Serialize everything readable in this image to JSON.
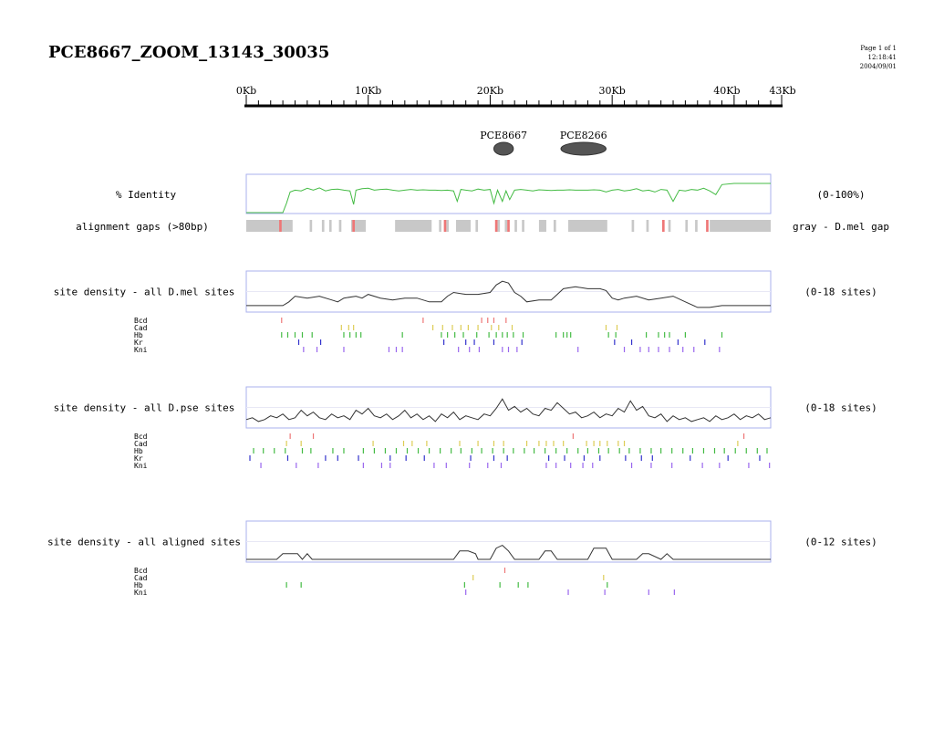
{
  "header": {
    "title": "PCE8667_ZOOM_13143_30035",
    "page": "Page 1 of 1",
    "time": "12:18:41",
    "date": "2004/09/01"
  },
  "chart_data": {
    "type": "genome_track_plot",
    "ruler": {
      "unit": "Kb",
      "range": [
        0,
        43
      ],
      "major_ticks": [
        0,
        10,
        20,
        30,
        40,
        43
      ],
      "tick_labels": [
        "0Kb",
        "10Kb",
        "20Kb",
        "30Kb",
        "40Kb",
        "43Kb"
      ]
    },
    "features": [
      {
        "name": "PCE8667",
        "start": 20.3,
        "end": 21.9
      },
      {
        "name": "PCE8266",
        "start": 25.8,
        "end": 29.5
      }
    ],
    "identity_track": {
      "label": "% Identity",
      "scale": "(0-100%)",
      "color": "#44bb44",
      "x": [
        0,
        1,
        2,
        3,
        3.3,
        3.6,
        4,
        4.5,
        5,
        5.5,
        6,
        6.5,
        7,
        7.5,
        8,
        8.5,
        8.8,
        9,
        9.5,
        10,
        10.5,
        11,
        11.5,
        12,
        12.5,
        13,
        13.5,
        14,
        14.5,
        15,
        15.5,
        16,
        16.5,
        17,
        17.3,
        17.6,
        18,
        18.5,
        19,
        19.5,
        20,
        20.3,
        20.6,
        21,
        21.3,
        21.6,
        22,
        22.5,
        23,
        23.5,
        24,
        24.5,
        25,
        25.5,
        26,
        26.5,
        27,
        27.5,
        28,
        28.5,
        29,
        29.5,
        30,
        30.5,
        31,
        31.5,
        32,
        32.5,
        33,
        33.5,
        34,
        34.5,
        35,
        35.5,
        36,
        36.5,
        37,
        37.5,
        38,
        38.5,
        39,
        40,
        41,
        42,
        43
      ],
      "values": [
        0,
        0,
        0,
        0,
        25,
        55,
        60,
        58,
        65,
        60,
        66,
        58,
        62,
        63,
        60,
        58,
        22,
        60,
        64,
        65,
        60,
        62,
        63,
        60,
        58,
        60,
        62,
        60,
        61,
        60,
        60,
        59,
        60,
        58,
        30,
        62,
        60,
        58,
        63,
        60,
        62,
        25,
        60,
        30,
        58,
        35,
        60,
        62,
        60,
        58,
        61,
        60,
        59,
        60,
        60,
        61,
        60,
        60,
        60,
        61,
        60,
        55,
        60,
        62,
        58,
        60,
        64,
        58,
        60,
        55,
        62,
        60,
        30,
        60,
        58,
        62,
        60,
        65,
        58,
        48,
        75,
        78,
        78,
        78,
        78
      ]
    },
    "gaps_track": {
      "label": "alignment gaps (>80bp)",
      "legend": "gray - D.mel gap",
      "gray_color": "#c8c8c8",
      "red_color": "#ee7777",
      "gray": [
        [
          0,
          3.8
        ],
        [
          5.2,
          5.4
        ],
        [
          6.2,
          6.4
        ],
        [
          6.8,
          7
        ],
        [
          7.6,
          7.8
        ],
        [
          8.6,
          9.8
        ],
        [
          12.2,
          15.2
        ],
        [
          15.8,
          16
        ],
        [
          16.4,
          16.6
        ],
        [
          17.2,
          18.4
        ],
        [
          18.8,
          19
        ],
        [
          20.6,
          20.8
        ],
        [
          21.2,
          21.4
        ],
        [
          22,
          22.2
        ],
        [
          22.6,
          22.8
        ],
        [
          24,
          24.6
        ],
        [
          25.2,
          25.4
        ],
        [
          26.4,
          29.6
        ],
        [
          31.6,
          31.8
        ],
        [
          32.8,
          33
        ],
        [
          34.6,
          34.8
        ],
        [
          36,
          36.2
        ],
        [
          36.8,
          37
        ],
        [
          38,
          43
        ]
      ],
      "red": [
        [
          2.7,
          2.9
        ],
        [
          8.7,
          8.9
        ],
        [
          16.2,
          16.4
        ],
        [
          20.4,
          20.6
        ],
        [
          21.4,
          21.6
        ],
        [
          34.1,
          34.3
        ],
        [
          37.7,
          37.9
        ]
      ]
    },
    "panels": [
      {
        "label": "site density - all D.mel sites",
        "scale": "(0-18 sites)",
        "ymax": 18,
        "x": [
          0,
          1,
          2,
          3,
          3.5,
          4,
          5,
          6,
          7,
          7.5,
          8,
          9,
          9.5,
          10,
          11,
          12,
          13,
          14,
          15,
          16,
          16.5,
          17,
          18,
          19,
          20,
          20.5,
          21,
          21.5,
          22,
          22.5,
          23,
          24,
          25,
          25.5,
          26,
          27,
          28,
          29,
          29.5,
          30,
          30.5,
          31,
          32,
          33,
          34,
          35,
          36,
          37,
          38,
          39,
          40,
          41,
          42,
          43
        ],
        "values": [
          2,
          2,
          2,
          2,
          4,
          7,
          6,
          7,
          5,
          4,
          6,
          7,
          6,
          8,
          6,
          5,
          6,
          6,
          4,
          4,
          7,
          9,
          8,
          8,
          9,
          13,
          15,
          14,
          9,
          7,
          4,
          5,
          5,
          8,
          11,
          12,
          11,
          11,
          10,
          6,
          5,
          6,
          7,
          5,
          6,
          7,
          4,
          1,
          1,
          2,
          2,
          2,
          2,
          2
        ],
        "tracks": [
          {
            "name": "Bcd",
            "color": "#ee7777",
            "sites": [
              2.9,
              14.5,
              19.3,
              19.8,
              20.3,
              21.3
            ]
          },
          {
            "name": "Cad",
            "color": "#ddcc55",
            "sites": [
              7.8,
              8.4,
              8.8,
              15.3,
              16.1,
              16.9,
              17.6,
              18.2,
              19.0,
              20.1,
              20.7,
              21.8,
              29.5,
              30.4
            ]
          },
          {
            "name": "Hb",
            "color": "#44bb44",
            "sites": [
              2.9,
              3.4,
              4.0,
              4.6,
              5.4,
              8.0,
              8.5,
              9.0,
              9.4,
              12.8,
              16.0,
              16.5,
              17.1,
              17.8,
              18.9,
              19.9,
              20.5,
              21.0,
              21.4,
              21.9,
              22.7,
              25.4,
              26.0,
              26.3,
              26.6,
              29.7,
              30.3,
              32.8,
              33.8,
              34.3,
              34.7,
              36.0,
              39.0
            ]
          },
          {
            "name": "Kr",
            "color": "#3333cc",
            "sites": [
              4.3,
              6.1,
              16.2,
              18.0,
              18.7,
              20.3,
              22.6,
              30.2,
              31.6,
              35.4,
              37.6
            ]
          },
          {
            "name": "Kni",
            "color": "#9966ee",
            "sites": [
              4.7,
              5.8,
              8.0,
              11.7,
              12.3,
              12.8,
              17.4,
              18.3,
              19.1,
              21.0,
              21.5,
              22.2,
              27.2,
              31.0,
              32.3,
              33.0,
              33.8,
              34.7,
              35.8,
              36.7,
              38.8
            ]
          }
        ]
      },
      {
        "label": "site density - all D.pse sites",
        "scale": "(0-18 sites)",
        "ymax": 18,
        "x": [
          0,
          0.5,
          1,
          1.5,
          2,
          2.5,
          3,
          3.5,
          4,
          4.5,
          5,
          5.5,
          6,
          6.5,
          7,
          7.5,
          8,
          8.5,
          9,
          9.5,
          10,
          10.5,
          11,
          11.5,
          12,
          12.5,
          13,
          13.5,
          14,
          14.5,
          15,
          15.5,
          16,
          16.5,
          17,
          17.5,
          18,
          18.5,
          19,
          19.5,
          20,
          20.5,
          21,
          21.5,
          22,
          22.5,
          23,
          23.5,
          24,
          24.5,
          25,
          25.5,
          26,
          26.5,
          27,
          27.5,
          28,
          28.5,
          29,
          29.5,
          30,
          30.5,
          31,
          31.5,
          32,
          32.5,
          33,
          33.5,
          34,
          34.5,
          35,
          35.5,
          36,
          36.5,
          37,
          37.5,
          38,
          38.5,
          39,
          39.5,
          40,
          40.5,
          41,
          41.5,
          42,
          42.5,
          43
        ],
        "values": [
          3,
          4,
          2,
          3,
          5,
          4,
          6,
          3,
          4,
          8,
          5,
          7,
          4,
          3,
          6,
          4,
          5,
          3,
          8,
          6,
          9,
          5,
          4,
          6,
          3,
          5,
          8,
          4,
          6,
          3,
          5,
          2,
          6,
          4,
          7,
          3,
          5,
          4,
          3,
          6,
          5,
          9,
          14,
          8,
          10,
          7,
          9,
          6,
          5,
          9,
          8,
          12,
          9,
          6,
          7,
          4,
          5,
          7,
          4,
          6,
          5,
          9,
          7,
          13,
          8,
          10,
          5,
          4,
          6,
          2,
          5,
          3,
          4,
          2,
          3,
          4,
          2,
          5,
          3,
          4,
          6,
          3,
          5,
          4,
          6,
          3,
          4
        ],
        "tracks": [
          {
            "name": "Bcd",
            "color": "#ee7777",
            "sites": [
              3.6,
              5.5,
              26.8,
              40.8
            ]
          },
          {
            "name": "Cad",
            "color": "#ddcc55",
            "sites": [
              3.3,
              4.5,
              10.4,
              12.9,
              13.6,
              14.8,
              17.5,
              19.0,
              20.3,
              21.1,
              23.0,
              24.0,
              24.6,
              25.2,
              26.0,
              27.9,
              28.5,
              29.0,
              29.6,
              30.5,
              31.0,
              40.3
            ]
          },
          {
            "name": "Hb",
            "color": "#44bb44",
            "sites": [
              0.6,
              1.4,
              2.3,
              3.2,
              4.6,
              5.3,
              7.1,
              8.0,
              9.6,
              10.5,
              11.4,
              12.3,
              13.2,
              14.1,
              15.0,
              15.9,
              16.8,
              17.6,
              18.5,
              19.3,
              20.2,
              21.1,
              21.9,
              22.8,
              23.6,
              24.5,
              25.4,
              26.3,
              27.2,
              28.0,
              28.9,
              29.7,
              30.6,
              31.4,
              32.3,
              33.2,
              34.0,
              34.9,
              35.8,
              36.6,
              37.5,
              38.4,
              39.2,
              40.1,
              41.0,
              41.9,
              42.7
            ]
          },
          {
            "name": "Kr",
            "color": "#3333cc",
            "sites": [
              0.3,
              3.4,
              6.5,
              7.5,
              9.2,
              11.8,
              13.1,
              14.6,
              18.4,
              20.3,
              21.4,
              24.8,
              26.1,
              27.7,
              29.0,
              31.1,
              32.4,
              33.3,
              36.4,
              39.5,
              42.1
            ]
          },
          {
            "name": "Kni",
            "color": "#9966ee",
            "sites": [
              1.2,
              4.1,
              5.9,
              9.6,
              11.1,
              11.8,
              15.4,
              16.4,
              18.3,
              19.8,
              20.9,
              24.6,
              25.4,
              26.6,
              27.6,
              28.4,
              31.6,
              33.2,
              34.9,
              37.4,
              38.8,
              41.2,
              42.9
            ]
          }
        ]
      },
      {
        "label": "site density - all aligned sites",
        "scale": "(0-12 sites)",
        "ymax": 12,
        "x": [
          0,
          2.5,
          3,
          4.2,
          4.6,
          5,
          5.4,
          17,
          17.5,
          18.2,
          18.8,
          19,
          20,
          20.5,
          21,
          21.5,
          22,
          24,
          24.5,
          25,
          25.5,
          28,
          28.5,
          29.5,
          30,
          32,
          32.5,
          33,
          34,
          34.5,
          35,
          43
        ],
        "values": [
          0,
          0,
          2,
          2,
          0,
          2,
          0,
          0,
          3,
          3,
          2,
          0,
          0,
          4,
          5,
          3,
          0,
          0,
          3,
          3,
          0,
          0,
          4,
          4,
          0,
          0,
          2,
          2,
          0,
          2,
          0,
          0
        ],
        "tracks": [
          {
            "name": "Bcd",
            "color": "#ee7777",
            "sites": [
              21.2
            ]
          },
          {
            "name": "Cad",
            "color": "#ddcc55",
            "sites": [
              18.6,
              29.3
            ]
          },
          {
            "name": "Hb",
            "color": "#44bb44",
            "sites": [
              3.3,
              4.5,
              17.9,
              20.8,
              22.3,
              23.1,
              29.6
            ]
          },
          {
            "name": "Kni",
            "color": "#9966ee",
            "sites": [
              18.0,
              26.4,
              29.4,
              33.0,
              35.1
            ]
          }
        ]
      }
    ]
  }
}
